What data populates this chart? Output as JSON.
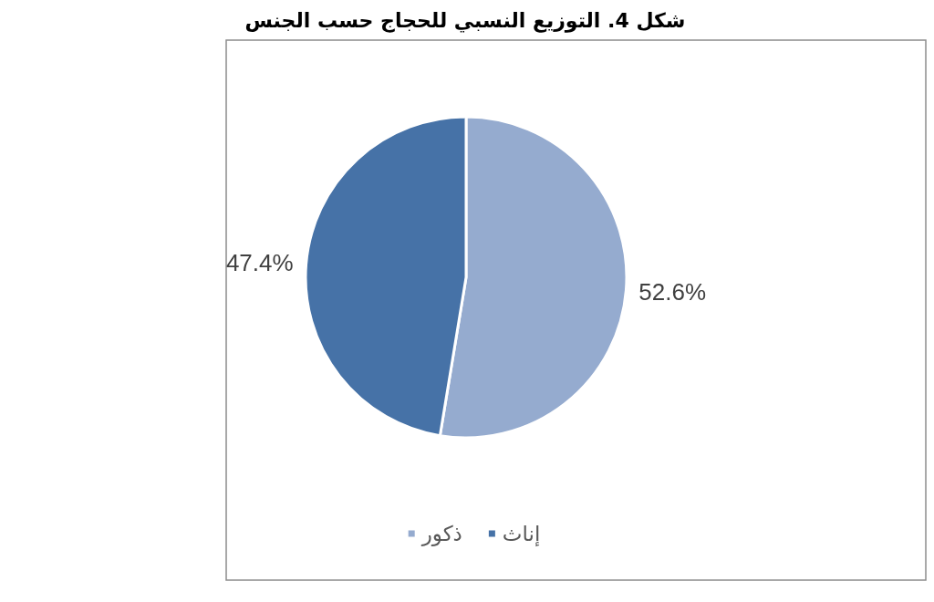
{
  "chart_data": {
    "type": "pie",
    "title": "شكل 4. التوزيع النسبي للحجاج حسب الجنس",
    "categories": [
      "ذكور",
      "إناث"
    ],
    "values": [
      52.6,
      47.4
    ],
    "colors": [
      "#95abcf",
      "#4672a7"
    ],
    "value_labels": [
      "52.6%",
      "47.4%"
    ],
    "legend": "bottom"
  }
}
